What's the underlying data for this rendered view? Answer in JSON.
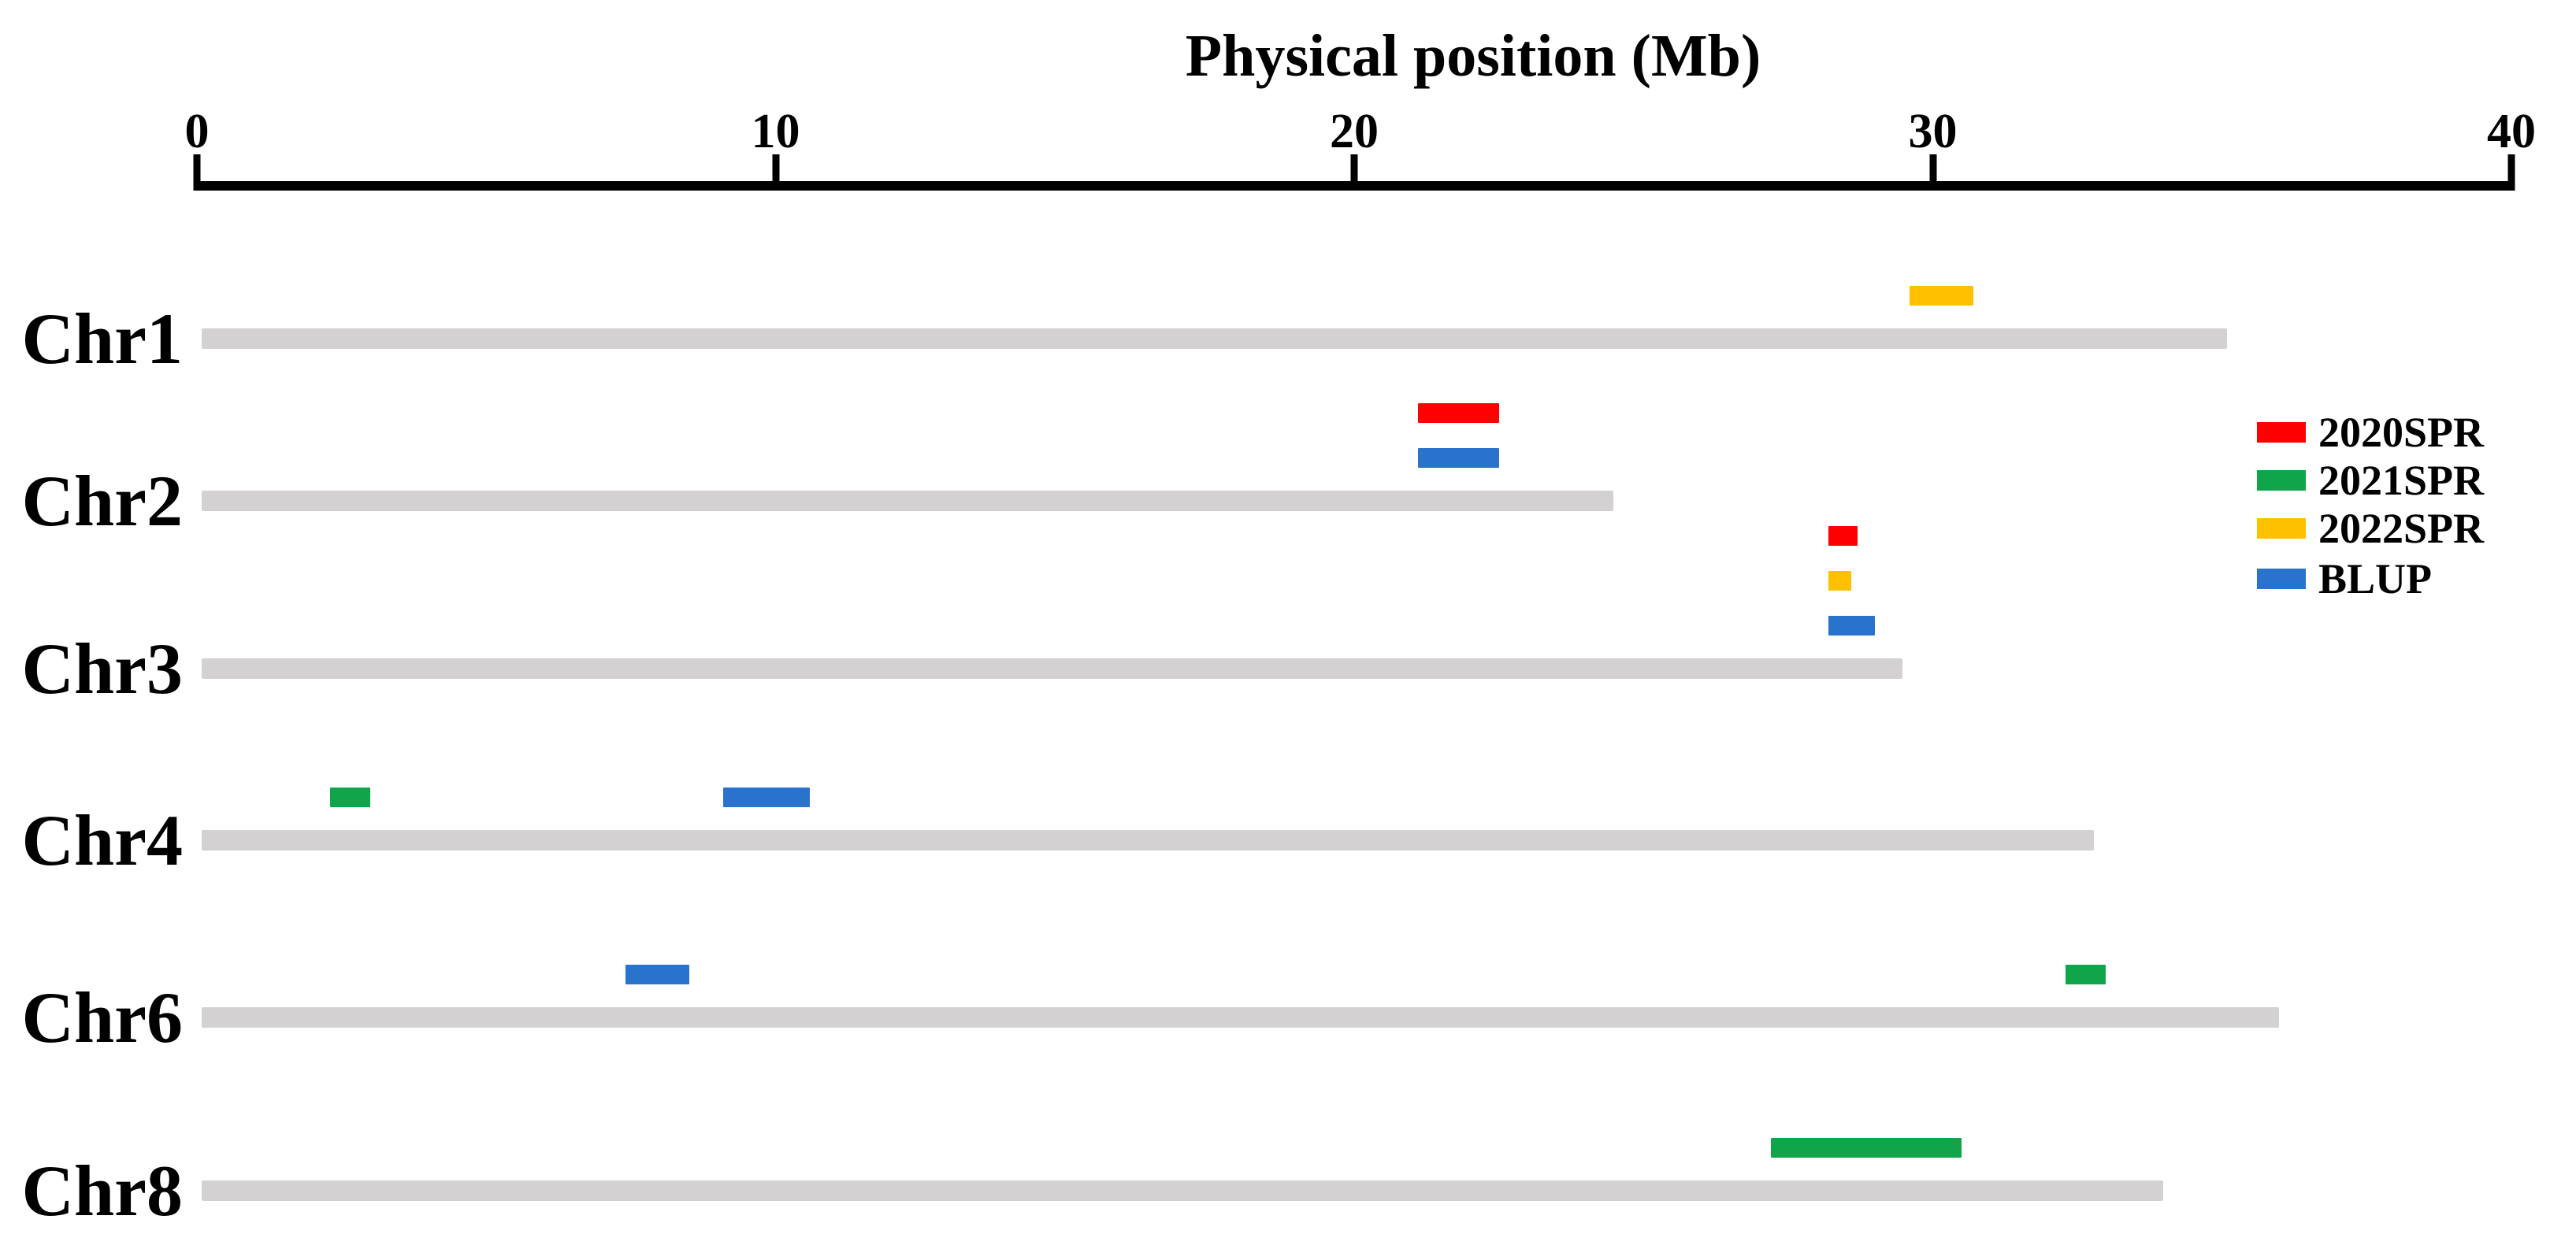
{
  "chart_data": {
    "type": "qtl_physical_map",
    "title": "Physical position (Mb)",
    "x_axis": {
      "label": "Physical position (Mb)",
      "unit": "Mb",
      "min": 0,
      "max": 40,
      "ticks": [
        0,
        10,
        20,
        30,
        40
      ]
    },
    "chromosomes": [
      {
        "name": "Chr1",
        "length_mb": 35.0,
        "qtl": [
          {
            "trait": "2022SPR",
            "start_mb": 29.6,
            "end_mb": 30.7,
            "level": 1
          }
        ]
      },
      {
        "name": "Chr2",
        "length_mb": 24.4,
        "qtl": [
          {
            "trait": "2020SPR",
            "start_mb": 21.1,
            "end_mb": 22.5,
            "level": 2
          },
          {
            "trait": "BLUP",
            "start_mb": 21.1,
            "end_mb": 22.5,
            "level": 1
          }
        ]
      },
      {
        "name": "Chr3",
        "length_mb": 29.4,
        "qtl": [
          {
            "trait": "2020SPR",
            "start_mb": 28.2,
            "end_mb": 28.7,
            "level": 3
          },
          {
            "trait": "2022SPR",
            "start_mb": 28.2,
            "end_mb": 28.6,
            "level": 2
          },
          {
            "trait": "BLUP",
            "start_mb": 28.2,
            "end_mb": 29.0,
            "level": 1
          }
        ]
      },
      {
        "name": "Chr4",
        "length_mb": 32.7,
        "qtl": [
          {
            "trait": "2021SPR",
            "start_mb": 2.3,
            "end_mb": 3.0,
            "level": 1
          },
          {
            "trait": "BLUP",
            "start_mb": 9.1,
            "end_mb": 10.6,
            "level": 1
          }
        ]
      },
      {
        "name": "Chr6",
        "length_mb": 35.9,
        "qtl": [
          {
            "trait": "BLUP",
            "start_mb": 7.4,
            "end_mb": 8.5,
            "level": 1
          },
          {
            "trait": "2021SPR",
            "start_mb": 32.3,
            "end_mb": 33.0,
            "level": 1
          }
        ]
      },
      {
        "name": "Chr8",
        "length_mb": 33.9,
        "qtl": [
          {
            "trait": "2021SPR",
            "start_mb": 27.2,
            "end_mb": 30.5,
            "level": 1
          }
        ]
      }
    ],
    "legend": [
      {
        "label": "2020SPR",
        "color": "#FE0000"
      },
      {
        "label": "2021SPR",
        "color": "#10A54A"
      },
      {
        "label": "2022SPR",
        "color": "#FFC000"
      },
      {
        "label": "BLUP",
        "color": "#2A73CC"
      }
    ],
    "colors": {
      "chromosome_bar": "#D3D1D1",
      "axis": "#000000"
    },
    "layout_hints": {
      "legend_position": "right",
      "axis_position": "top",
      "grid": false
    }
  }
}
